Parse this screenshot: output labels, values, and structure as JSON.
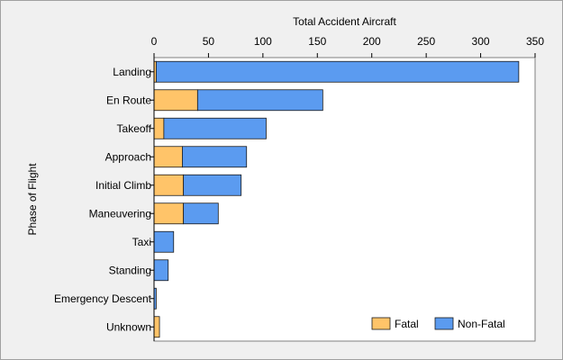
{
  "chart_data": {
    "type": "bar",
    "orientation": "horizontal",
    "stacked": true,
    "title": "",
    "xlabel": "Total Accident Aircraft",
    "ylabel": "Phase of Flight",
    "xlim": [
      0,
      350
    ],
    "x_ticks": [
      0,
      50,
      100,
      150,
      200,
      250,
      300,
      350
    ],
    "x_axis_position": "top",
    "grid": false,
    "legend_position": "bottom-right",
    "categories": [
      "Landing",
      "En Route",
      "Takeoff",
      "Approach",
      "Initial Climb",
      "Maneuvering",
      "Taxi",
      "Standing",
      "Emergency Descent",
      "Unknown"
    ],
    "series": [
      {
        "name": "Fatal",
        "color": "#ffc469",
        "values": [
          2,
          40,
          9,
          26,
          27,
          27,
          0,
          0,
          0,
          5
        ]
      },
      {
        "name": "Non-Fatal",
        "color": "#5b9bf0",
        "values": [
          333,
          115,
          94,
          59,
          53,
          32,
          18,
          13,
          2,
          0
        ]
      }
    ]
  }
}
